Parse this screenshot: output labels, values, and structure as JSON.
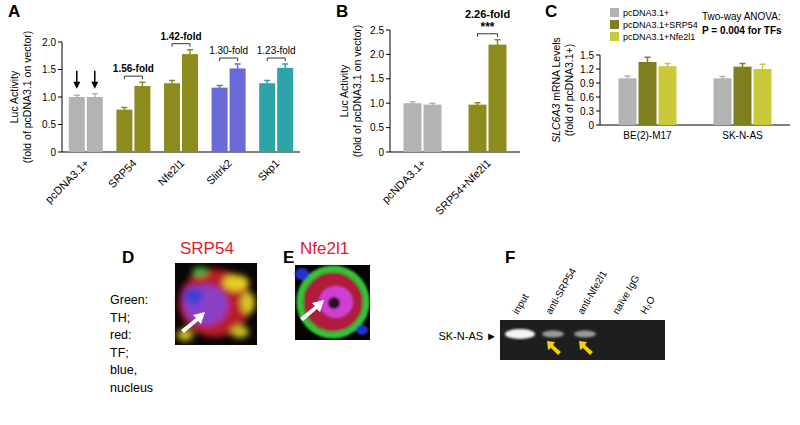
{
  "chart_data": [
    {
      "panel": "A",
      "type": "bar",
      "y_label": [
        "Luc Activity",
        "(fold of pcDNA3.1 on vector)"
      ],
      "categories": [
        "pcDNA3.1+",
        "SRP54",
        "Nfe2l1",
        "Slitrk2",
        "Skp1"
      ],
      "series": [
        {
          "values": [
            1.0,
            0.77,
            1.25,
            1.17,
            1.25
          ],
          "errors": [
            0.03,
            0.04,
            0.05,
            0.04,
            0.05
          ],
          "colors": [
            "#b3b3b3",
            "#8c8c1e",
            "#8c8c1e",
            "#6a6ad8",
            "#2ea3a8"
          ]
        },
        {
          "values": [
            1.0,
            1.2,
            1.78,
            1.52,
            1.53
          ],
          "errors": [
            0.06,
            0.07,
            0.08,
            0.08,
            0.07
          ],
          "colors": [
            "#b3b3b3",
            "#8c8c1e",
            "#8c8c1e",
            "#6a6ad8",
            "#2ea3a8"
          ]
        }
      ],
      "fold_labels": [
        null,
        "1.56-fold",
        "1.42-fold",
        "1.30-fold",
        "1.23-fold"
      ],
      "ylim": [
        0,
        2
      ],
      "yticks": [
        0,
        0.5,
        {
          "value": 1,
          "label": "1.0"
        },
        1.5,
        {
          "value": 2,
          "label": "2.0"
        }
      ]
    },
    {
      "panel": "B",
      "type": "bar",
      "y_label": [
        "Luc Activity",
        "(fold of pcDNA3.1 on vector)"
      ],
      "categories": [
        "pcNDA3.1+",
        "SRP54+Nfe2l1"
      ],
      "series": [
        {
          "values": [
            1.0,
            0.97
          ],
          "errors": [
            0.03,
            0.04
          ],
          "colors": [
            "#b3b3b3",
            "#8c8c1e"
          ]
        },
        {
          "values": [
            0.97,
            2.2
          ],
          "errors": [
            0.03,
            0.1
          ],
          "colors": [
            "#b3b3b3",
            "#8c8c1e"
          ]
        }
      ],
      "fold_labels": [
        null,
        "2.26-fold"
      ],
      "significance": [
        null,
        "***"
      ],
      "ylim": [
        0,
        2.5
      ],
      "yticks": [
        0,
        0.5,
        {
          "value": 1,
          "label": "1.0"
        },
        1.5,
        {
          "value": 2,
          "label": "2.0"
        },
        2.5
      ]
    },
    {
      "panel": "C",
      "type": "bar",
      "y_label": [
        "SLC6A3 mRNA Levels",
        "(fold of pcDNA3.1+)"
      ],
      "categories": [
        "BE(2)-M17",
        "SK-N-AS"
      ],
      "series": [
        {
          "name": "pcDNA3.1+",
          "color": "#b3b3b3",
          "values": [
            1.0,
            1.0
          ],
          "errors": [
            0.05,
            0.04
          ]
        },
        {
          "name": "pcDNA3.1+SRP54",
          "color": "#7f7f1f",
          "values": [
            1.35,
            1.25
          ],
          "errors": [
            0.1,
            0.07
          ]
        },
        {
          "name": "pcDNA3.1+Nfe2l1",
          "color": "#c9c93c",
          "values": [
            1.26,
            1.2
          ],
          "errors": [
            0.06,
            0.1
          ]
        }
      ],
      "annotation": [
        "Two-way ANOVA:",
        "P = 0.004 for TFs"
      ],
      "legend": "upper left",
      "ylim": [
        0,
        1.5
      ],
      "yticks": [
        0,
        0.3,
        0.6,
        0.9,
        1.2,
        1.5
      ]
    }
  ],
  "figures": [
    {
      "panel": "D",
      "title": "SRP54",
      "legend_text": [
        "Green:",
        "TH;",
        "red:",
        "TF;",
        "blue,",
        "nucleus"
      ]
    },
    {
      "panel": "E",
      "title": "Nfe2l1"
    },
    {
      "panel": "F",
      "row_label": "SK-N-AS ►",
      "lanes": [
        "input",
        "anti-SRP54",
        "anti-Nfe2l1",
        "naïve IgG",
        "H₂O"
      ],
      "bands": [
        true,
        true,
        true,
        false,
        false
      ]
    }
  ]
}
